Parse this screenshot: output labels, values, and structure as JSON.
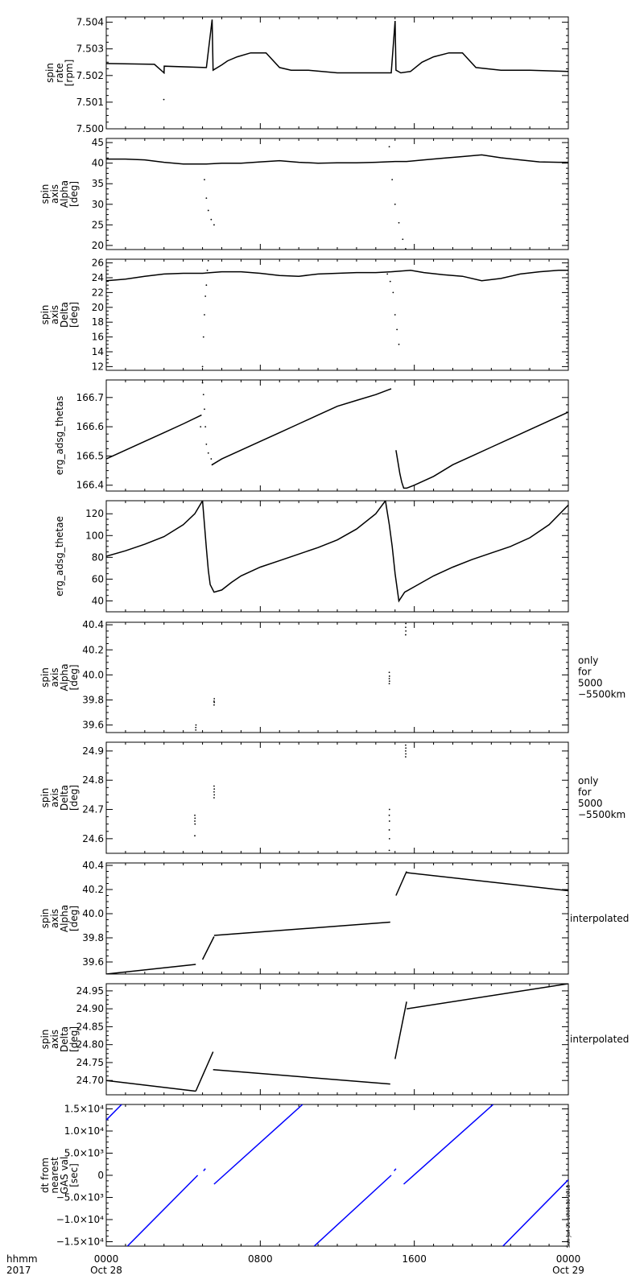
{
  "chart_data": [
    {
      "type": "scatter",
      "ylabel": [
        "spin",
        "rate",
        "[rpm]"
      ],
      "right_label": [],
      "ylim": [
        7.5,
        7.5042
      ],
      "yticks": [
        7.5,
        7.501,
        7.502,
        7.503,
        7.504
      ],
      "ytick_labels": [
        "7.500",
        "7.501",
        "7.502",
        "7.503",
        "7.504"
      ],
      "color": "#000000",
      "series": [
        {
          "x": [
            0,
            2.5,
            3.0,
            3.01,
            5.2,
            5.5,
            5.55,
            6.0,
            6.3,
            6.8,
            7.5,
            8.3,
            9.0,
            9.6,
            10.5,
            12.0,
            13.5,
            14.8,
            15.0,
            15.05,
            15.3,
            15.8,
            16.4,
            17.0,
            17.8,
            18.5,
            19.2,
            20.5,
            22.0,
            24.0
          ],
          "y": [
            7.50245,
            7.50242,
            7.5021,
            7.50235,
            7.5023,
            7.5041,
            7.5022,
            7.5024,
            7.50255,
            7.5027,
            7.50285,
            7.50285,
            7.5023,
            7.5022,
            7.5022,
            7.5021,
            7.5021,
            7.5021,
            7.50405,
            7.5022,
            7.5021,
            7.50215,
            7.5025,
            7.5027,
            7.50285,
            7.50285,
            7.5023,
            7.5022,
            7.5022,
            7.50215
          ]
        },
        {
          "x": [
            2.99,
            3.0
          ],
          "y": [
            7.5011,
            7.5021
          ],
          "style": "dots"
        }
      ]
    },
    {
      "type": "scatter",
      "ylabel": [
        "spin",
        "axis",
        "Alpha",
        "[deg]"
      ],
      "right_label": [],
      "ylim": [
        19,
        46
      ],
      "yticks": [
        20,
        25,
        30,
        35,
        40,
        45
      ],
      "ytick_labels": [
        "20",
        "25",
        "30",
        "35",
        "40",
        "45"
      ],
      "color": "#000000",
      "series": [
        {
          "x": [
            0,
            1,
            2,
            3,
            4,
            5.2,
            6.0,
            7,
            8,
            9,
            10,
            11,
            12,
            13,
            14,
            15.0,
            15.6,
            16.5,
            17.5,
            18.5,
            19.5,
            20.5,
            21.5,
            22.5,
            23.5,
            24
          ],
          "y": [
            41.0,
            41.0,
            40.8,
            40.2,
            39.8,
            39.8,
            40.0,
            40.0,
            40.3,
            40.6,
            40.2,
            40.0,
            40.1,
            40.1,
            40.2,
            40.4,
            40.4,
            40.8,
            41.2,
            41.6,
            42.0,
            41.3,
            40.8,
            40.3,
            40.2,
            40.2
          ]
        },
        {
          "x": [
            5.0,
            5.1,
            5.2,
            5.3,
            5.45,
            5.6
          ],
          "y": [
            46,
            36,
            31.5,
            28.5,
            26.3,
            25.0
          ],
          "style": "dots"
        },
        {
          "x": [
            14.7,
            14.85,
            15.0,
            15.2,
            15.4,
            15.55
          ],
          "y": [
            44,
            36,
            30,
            25.5,
            21.5,
            19.2
          ],
          "style": "dots"
        }
      ]
    },
    {
      "type": "scatter",
      "ylabel": [
        "spin",
        "axis",
        "Delta",
        "[deg]"
      ],
      "right_label": [],
      "ylim": [
        11.5,
        26.5
      ],
      "yticks": [
        12,
        14,
        16,
        18,
        20,
        22,
        24,
        26
      ],
      "ytick_labels": [
        "12",
        "14",
        "16",
        "18",
        "20",
        "22",
        "24",
        "26"
      ],
      "color": "#000000",
      "series": [
        {
          "x": [
            0,
            1,
            2,
            3,
            4,
            5.0,
            6.0,
            7,
            8,
            9,
            10,
            11,
            12,
            13,
            14,
            14.8,
            15.8,
            16.5,
            17.5,
            18.5,
            19.5,
            20.5,
            21.5,
            22.5,
            23.5,
            24
          ],
          "y": [
            23.6,
            23.8,
            24.2,
            24.5,
            24.6,
            24.6,
            24.8,
            24.8,
            24.6,
            24.3,
            24.2,
            24.5,
            24.6,
            24.7,
            24.7,
            24.8,
            25.0,
            24.7,
            24.4,
            24.2,
            23.6,
            23.9,
            24.5,
            24.8,
            25.0,
            25.0
          ]
        },
        {
          "x": [
            5.0,
            5.05,
            5.1,
            5.15,
            5.2,
            5.25,
            5.3
          ],
          "y": [
            12.0,
            16.0,
            19.0,
            21.5,
            23.0,
            25.0,
            26.3
          ],
          "style": "dots"
        },
        {
          "x": [
            14.6,
            14.75,
            14.9,
            15.0,
            15.1,
            15.2
          ],
          "y": [
            24.5,
            23.5,
            22.0,
            19.0,
            17.0,
            15.0
          ],
          "style": "dots"
        }
      ]
    },
    {
      "type": "scatter",
      "ylabel": [
        "erg_adsg_thetas"
      ],
      "right_label": [],
      "ylim": [
        166.38,
        166.76
      ],
      "yticks": [
        166.4,
        166.5,
        166.6,
        166.7
      ],
      "ytick_labels": [
        "166.4",
        "166.5",
        "166.6",
        "166.7"
      ],
      "color": "#000000",
      "series": [
        {
          "x": [
            0,
            1,
            2,
            3,
            4,
            4.95
          ],
          "y": [
            166.49,
            166.52,
            166.55,
            166.58,
            166.61,
            166.64
          ]
        },
        {
          "x": [
            5.5,
            6.0,
            7,
            8,
            9,
            10,
            11,
            12,
            13,
            14,
            14.8
          ],
          "y": [
            166.47,
            166.49,
            166.52,
            166.55,
            166.58,
            166.61,
            166.64,
            166.67,
            166.69,
            166.71,
            166.73
          ]
        },
        {
          "x": [
            15.05,
            15.15,
            15.25,
            15.35,
            15.45,
            15.6,
            16,
            17,
            18,
            19,
            20,
            21,
            22,
            23,
            24
          ],
          "y": [
            166.52,
            166.48,
            166.44,
            166.41,
            166.39,
            166.39,
            166.4,
            166.43,
            166.47,
            166.5,
            166.53,
            166.56,
            166.59,
            166.62,
            166.65
          ]
        },
        {
          "x": [
            4.9,
            5.0,
            5.05,
            5.1,
            5.15,
            5.2,
            5.3,
            5.45,
            5.5
          ],
          "y": [
            166.6,
            166.75,
            166.71,
            166.66,
            166.6,
            166.54,
            166.51,
            166.49,
            166.47
          ],
          "style": "dots"
        }
      ]
    },
    {
      "type": "line",
      "ylabel": [
        "erg_adsg_thetae"
      ],
      "right_label": [],
      "ylim": [
        30,
        132
      ],
      "yticks": [
        40,
        60,
        80,
        100,
        120
      ],
      "ytick_labels": [
        "40",
        "60",
        "80",
        "100",
        "120"
      ],
      "color": "#000000",
      "series": [
        {
          "x": [
            0,
            1,
            2,
            3,
            4,
            4.6,
            5.0
          ],
          "y": [
            81,
            86,
            92,
            99,
            110,
            120,
            132
          ]
        },
        {
          "x": [
            5.0,
            5.1,
            5.2,
            5.3,
            5.4,
            5.6,
            6.0,
            6.5,
            7,
            8,
            9,
            10,
            11,
            12,
            13,
            14,
            14.5
          ],
          "y": [
            132,
            110,
            88,
            68,
            55,
            48,
            50,
            57,
            63,
            71,
            77,
            83,
            89,
            96,
            106,
            120,
            132
          ]
        },
        {
          "x": [
            14.5,
            14.7,
            14.85,
            15.0,
            15.2,
            15.5,
            16,
            17,
            18,
            19,
            20,
            21,
            22,
            23,
            24
          ],
          "y": [
            132,
            110,
            90,
            65,
            40,
            48,
            53,
            63,
            71,
            78,
            84,
            90,
            98,
            110,
            128
          ]
        }
      ]
    },
    {
      "type": "scatter",
      "ylabel": [
        "spin",
        "axis",
        "Alpha",
        "[deg]"
      ],
      "right_label": [
        "only",
        "for",
        "5000",
        "−5500km"
      ],
      "ylim": [
        39.54,
        40.42
      ],
      "yticks": [
        39.6,
        39.8,
        40.0,
        40.2,
        40.4
      ],
      "ytick_labels": [
        "39.6",
        "39.8",
        "40.0",
        "40.2",
        "40.4"
      ],
      "color": "#000000",
      "series": [
        {
          "x": [
            4.65,
            4.65,
            4.66
          ],
          "y": [
            39.56,
            39.58,
            39.6
          ],
          "style": "dots"
        },
        {
          "x": [
            5.6,
            5.61,
            5.6,
            5.61
          ],
          "y": [
            39.76,
            39.78,
            39.79,
            39.81
          ],
          "style": "dots"
        },
        {
          "x": [
            14.7,
            14.71,
            14.7,
            14.71,
            14.7
          ],
          "y": [
            39.93,
            39.95,
            39.97,
            39.99,
            40.02
          ],
          "style": "dots"
        },
        {
          "x": [
            15.55,
            15.56,
            15.55,
            15.56
          ],
          "y": [
            40.32,
            40.35,
            40.38,
            40.41
          ],
          "style": "dots"
        }
      ]
    },
    {
      "type": "scatter",
      "ylabel": [
        "spin",
        "axis",
        "Delta",
        "[deg]"
      ],
      "right_label": [
        "only",
        "for",
        "5000",
        "−5500km"
      ],
      "ylim": [
        24.55,
        24.93
      ],
      "yticks": [
        24.6,
        24.7,
        24.8,
        24.9
      ],
      "ytick_labels": [
        "24.6",
        "24.7",
        "24.8",
        "24.9"
      ],
      "color": "#000000",
      "series": [
        {
          "x": [
            4.6,
            4.61,
            4.6,
            4.61,
            4.6
          ],
          "y": [
            24.61,
            24.65,
            24.66,
            24.67,
            24.68
          ],
          "style": "dots"
        },
        {
          "x": [
            5.6,
            5.61,
            5.6,
            5.61,
            5.6
          ],
          "y": [
            24.74,
            24.75,
            24.76,
            24.77,
            24.78
          ],
          "style": "dots"
        },
        {
          "x": [
            14.7,
            14.71,
            14.7,
            14.71,
            14.7,
            14.71
          ],
          "y": [
            24.56,
            24.6,
            24.63,
            24.66,
            24.68,
            24.7
          ],
          "style": "dots"
        },
        {
          "x": [
            15.55,
            15.56,
            15.55,
            15.56,
            15.55
          ],
          "y": [
            24.88,
            24.89,
            24.9,
            24.91,
            24.92
          ],
          "style": "dots"
        }
      ]
    },
    {
      "type": "line",
      "ylabel": [
        "spin",
        "axis",
        "Alpha",
        "[deg]"
      ],
      "right_label": [
        "interpolated"
      ],
      "ylim": [
        39.5,
        40.42
      ],
      "yticks": [
        39.6,
        39.8,
        40.0,
        40.2,
        40.4
      ],
      "ytick_labels": [
        "39.6",
        "39.8",
        "40.0",
        "40.2",
        "40.4"
      ],
      "color": "#000000",
      "series": [
        {
          "x": [
            0,
            4.65
          ],
          "y": [
            39.5,
            39.58
          ]
        },
        {
          "x": [
            5.0,
            5.6
          ],
          "y": [
            39.62,
            39.81
          ]
        },
        {
          "x": [
            5.6,
            14.75
          ],
          "y": [
            39.82,
            39.93
          ]
        },
        {
          "x": [
            15.05,
            15.6
          ],
          "y": [
            40.15,
            40.35
          ]
        },
        {
          "x": [
            15.6,
            24
          ],
          "y": [
            40.34,
            40.19
          ]
        }
      ]
    },
    {
      "type": "line",
      "ylabel": [
        "spin",
        "axis",
        "Delta",
        "[deg]"
      ],
      "right_label": [
        "interpolated"
      ],
      "ylim": [
        24.66,
        24.97
      ],
      "yticks": [
        24.7,
        24.75,
        24.8,
        24.85,
        24.9,
        24.95
      ],
      "ytick_labels": [
        "24.70",
        "24.75",
        "24.80",
        "24.85",
        "24.90",
        "24.95"
      ],
      "color": "#000000",
      "series": [
        {
          "x": [
            0,
            4.65
          ],
          "y": [
            24.7,
            24.67
          ]
        },
        {
          "x": [
            4.65,
            5.55
          ],
          "y": [
            24.67,
            24.78
          ]
        },
        {
          "x": [
            5.55,
            14.75
          ],
          "y": [
            24.73,
            24.69
          ]
        },
        {
          "x": [
            15.0,
            15.6
          ],
          "y": [
            24.76,
            24.92
          ]
        },
        {
          "x": [
            15.6,
            24
          ],
          "y": [
            24.9,
            24.97
          ]
        }
      ]
    },
    {
      "type": "line",
      "ylabel": [
        "dt from",
        "nearest",
        "GAS val",
        "[sec]"
      ],
      "right_label": [],
      "ylim": [
        -16000,
        16000
      ],
      "yticks": [
        -15000,
        -10000,
        -5000,
        0,
        5000,
        10000,
        15000
      ],
      "ytick_labels": [
        "−1.5×10⁴",
        "−1.0×10⁴",
        "−5.0×10³",
        "0",
        "5.0×10³",
        "1.0×10⁴",
        "1.5×10⁴"
      ],
      "color": "#0000ff",
      "series": [
        {
          "x": [
            0,
            0.8
          ],
          "y": [
            12500,
            16000
          ]
        },
        {
          "x": [
            1.1,
            4.75
          ],
          "y": [
            -16000,
            0
          ]
        },
        {
          "x": [
            5.05,
            5.15
          ],
          "y": [
            1000,
            1500
          ]
        },
        {
          "x": [
            5.6,
            10.2
          ],
          "y": [
            -2000,
            16000
          ]
        },
        {
          "x": [
            10.8,
            14.8
          ],
          "y": [
            -16000,
            0
          ]
        },
        {
          "x": [
            14.95,
            15.05
          ],
          "y": [
            1000,
            1500
          ]
        },
        {
          "x": [
            15.45,
            20.1
          ],
          "y": [
            -2000,
            16000
          ]
        },
        {
          "x": [
            20.6,
            24.0
          ],
          "y": [
            -16000,
            -1000
          ]
        }
      ]
    }
  ],
  "x_axis": {
    "range": [
      0,
      24
    ],
    "ticks": [
      0,
      8,
      16,
      24
    ],
    "tick_labels": [
      "0000",
      "0800",
      "1600",
      "0000"
    ],
    "date_labels": [
      "Oct 28",
      "",
      "",
      "Oct 29"
    ],
    "row_label_top": "hhmm",
    "row_label_bottom": "2017"
  },
  "timestamp": "Sun Jan 21 10:00:30 2018"
}
